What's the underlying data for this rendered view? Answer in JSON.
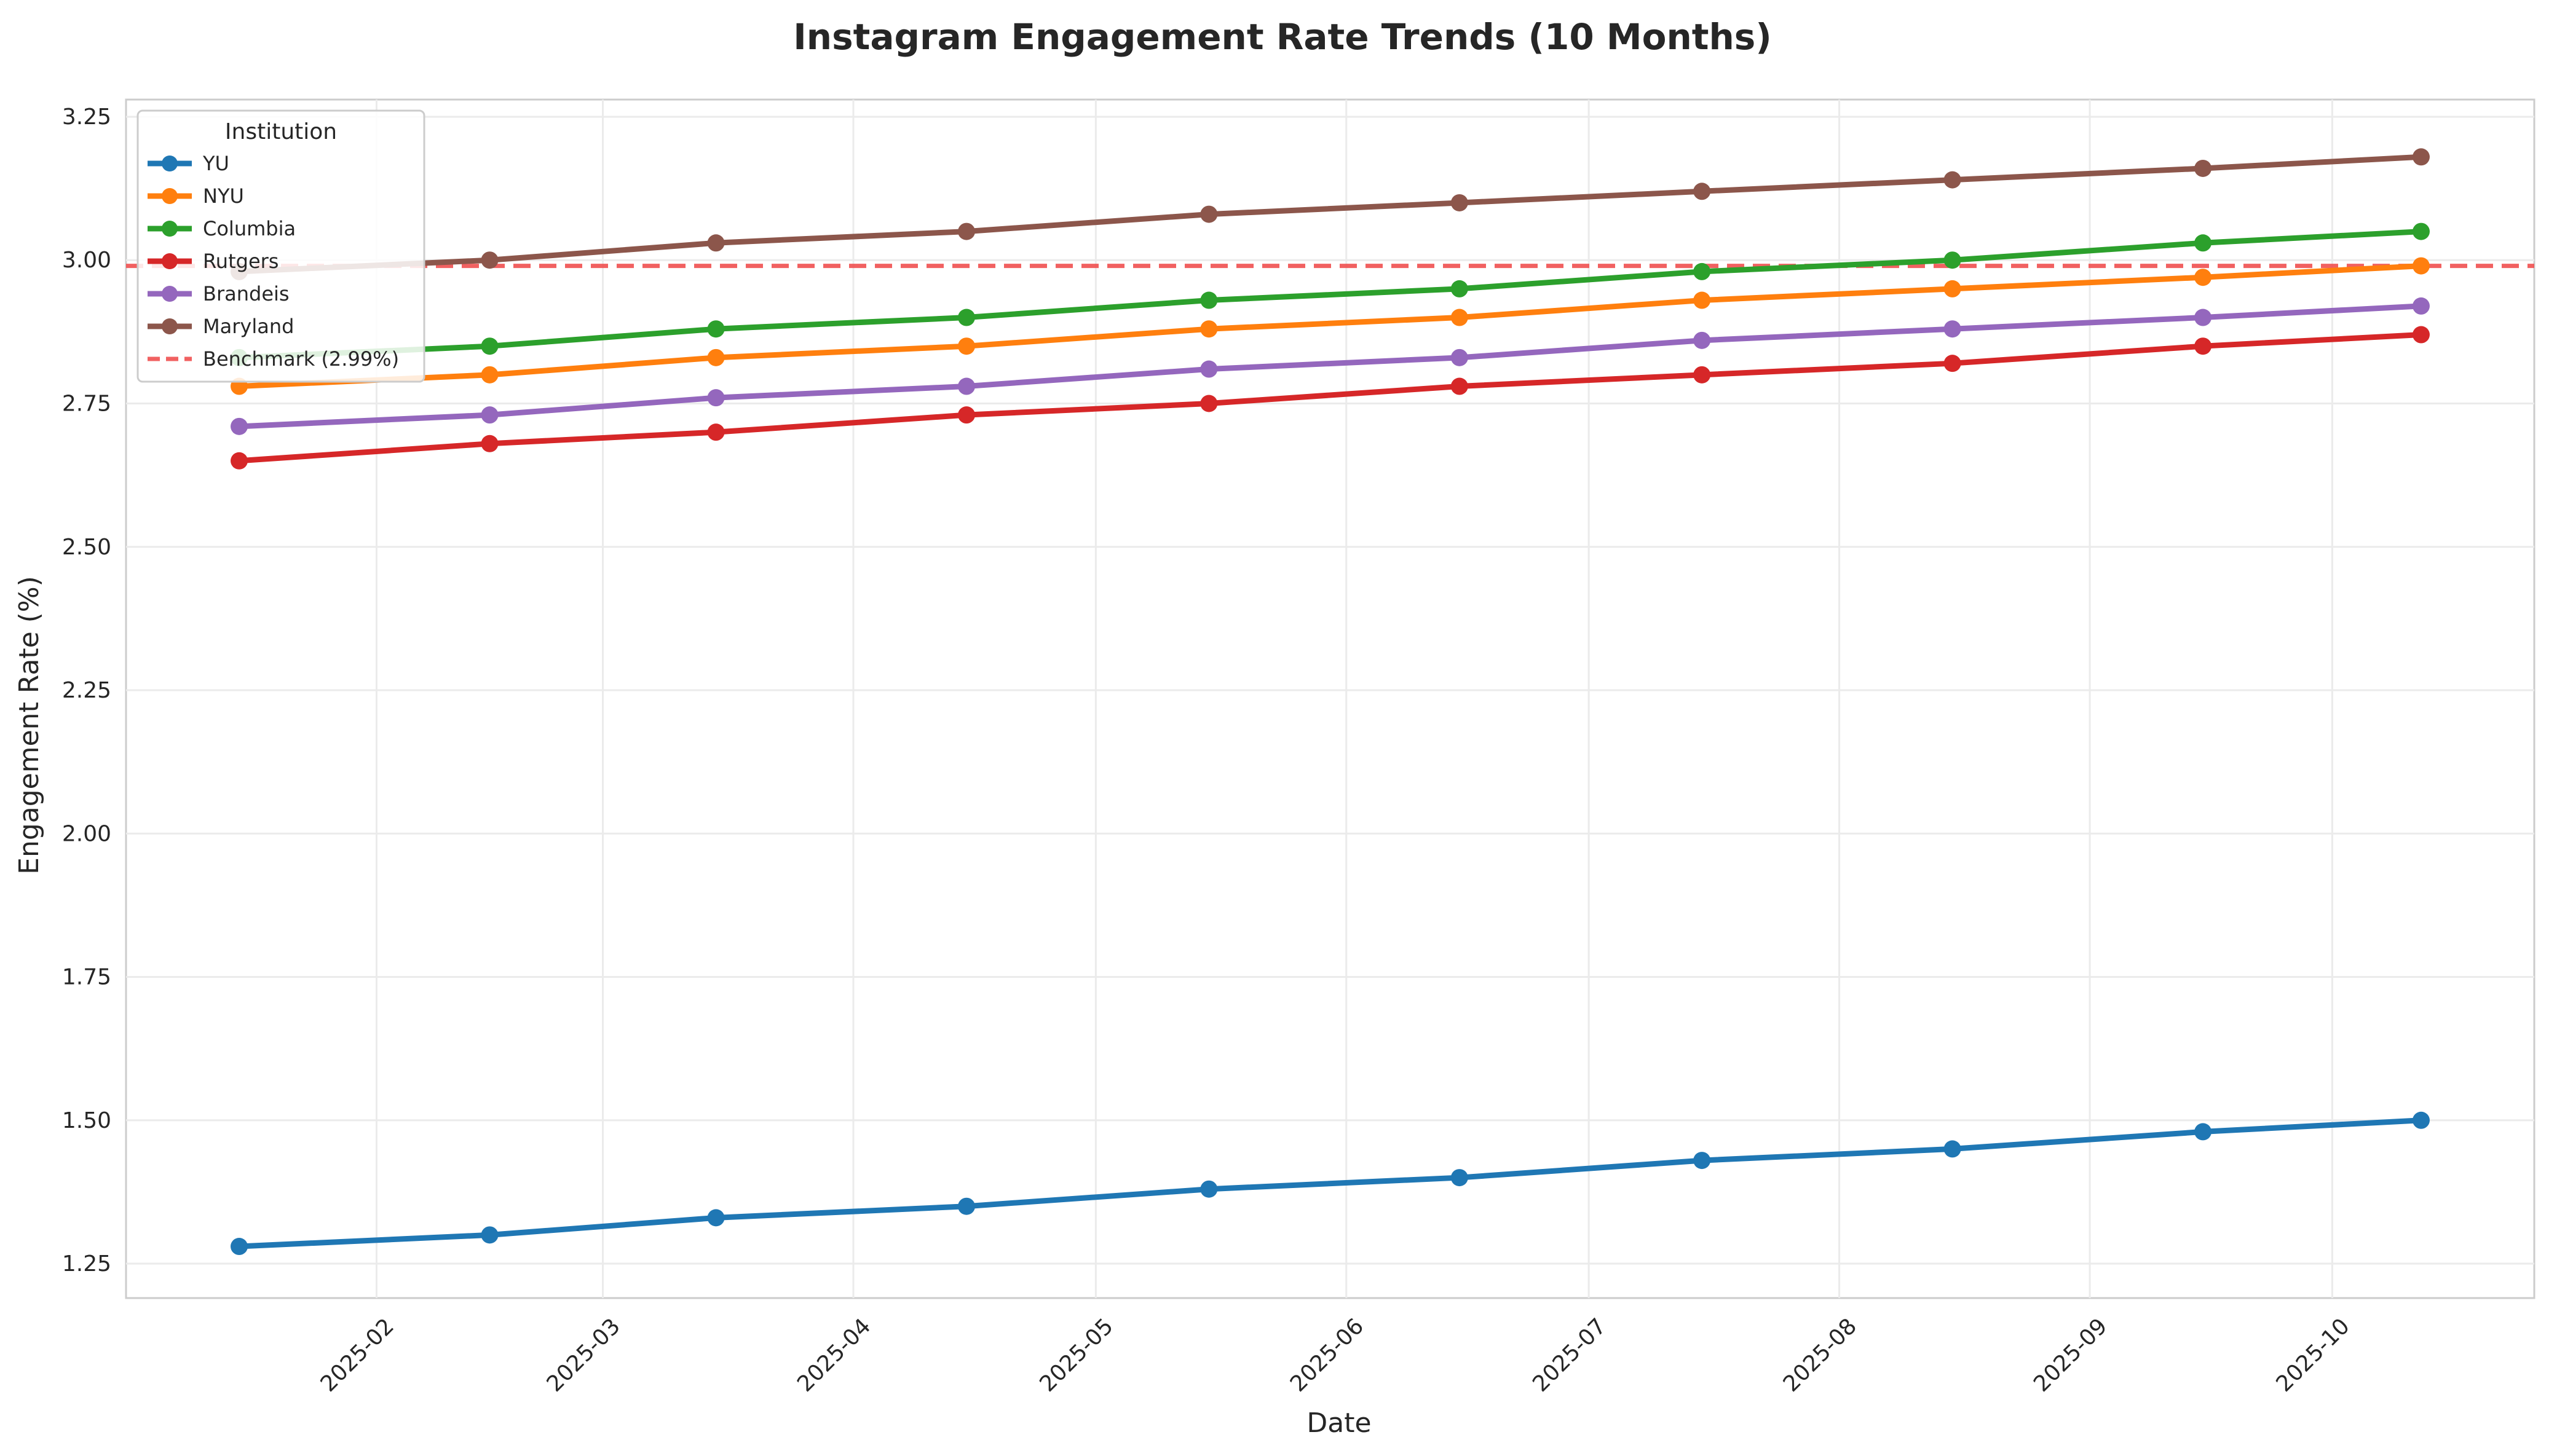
{
  "chart_data": {
    "type": "line",
    "title": "Instagram Engagement Rate Trends (10 Months)",
    "xlabel": "Date",
    "ylabel": "Engagement Rate (%)",
    "x": [
      "2025-01-15",
      "2025-02-15",
      "2025-03-15",
      "2025-04-15",
      "2025-05-15",
      "2025-06-15",
      "2025-07-15",
      "2025-08-15",
      "2025-09-15",
      "2025-10-12"
    ],
    "x_ticks": [
      "2025-02",
      "2025-03",
      "2025-04",
      "2025-05",
      "2025-06",
      "2025-07",
      "2025-08",
      "2025-09",
      "2025-10"
    ],
    "y_ticks": [
      "1.25",
      "1.50",
      "1.75",
      "2.00",
      "2.25",
      "2.50",
      "2.75",
      "3.00",
      "3.25"
    ],
    "xlim": [
      "2025-01-01",
      "2025-10-26"
    ],
    "ylim": [
      1.19,
      3.28
    ],
    "grid": true,
    "legend_title": "Institution",
    "legend_position": "upper-left",
    "series": [
      {
        "name": "YU",
        "color": "#1f77b4",
        "values": [
          1.28,
          1.3,
          1.33,
          1.35,
          1.38,
          1.4,
          1.43,
          1.45,
          1.48,
          1.5
        ]
      },
      {
        "name": "NYU",
        "color": "#ff7f0e",
        "values": [
          2.78,
          2.8,
          2.83,
          2.85,
          2.88,
          2.9,
          2.93,
          2.95,
          2.97,
          2.99
        ]
      },
      {
        "name": "Columbia",
        "color": "#2ca02c",
        "values": [
          2.83,
          2.85,
          2.88,
          2.9,
          2.93,
          2.95,
          2.98,
          3.0,
          3.03,
          3.05
        ]
      },
      {
        "name": "Rutgers",
        "color": "#d62728",
        "values": [
          2.65,
          2.68,
          2.7,
          2.73,
          2.75,
          2.78,
          2.8,
          2.82,
          2.85,
          2.87
        ]
      },
      {
        "name": "Brandeis",
        "color": "#9467bd",
        "values": [
          2.71,
          2.73,
          2.76,
          2.78,
          2.81,
          2.83,
          2.86,
          2.88,
          2.9,
          2.92
        ]
      },
      {
        "name": "Maryland",
        "color": "#8c564b",
        "values": [
          2.98,
          3.0,
          3.03,
          3.05,
          3.08,
          3.1,
          3.12,
          3.14,
          3.16,
          3.18
        ]
      }
    ],
    "benchmark": {
      "label": "Benchmark (2.99%)",
      "value": 2.99,
      "color": "#f05050"
    }
  }
}
